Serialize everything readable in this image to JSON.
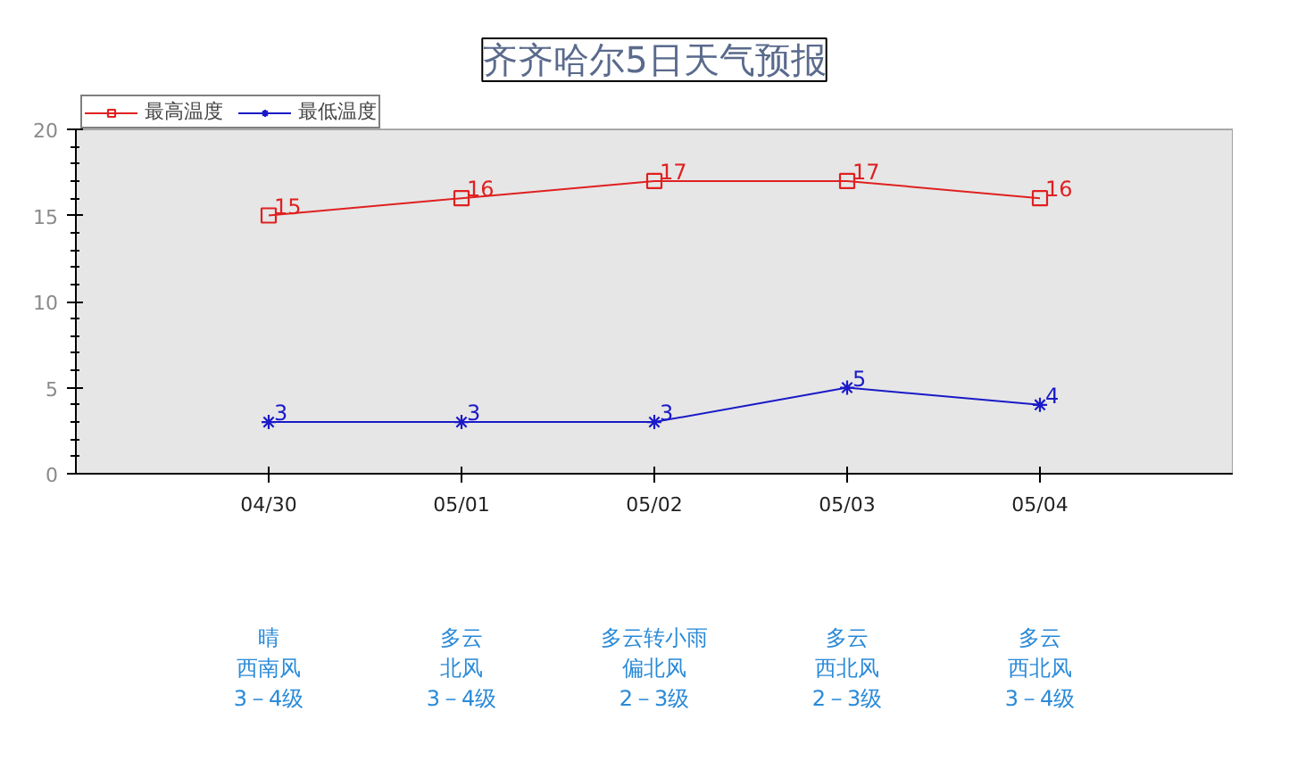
{
  "chart_data": {
    "type": "line",
    "title": "齐齐哈尔5日天气预报",
    "categories": [
      "04/30",
      "05/01",
      "05/02",
      "05/03",
      "05/04"
    ],
    "series": [
      {
        "name": "最高温度",
        "color": "#e02020",
        "values": [
          15,
          16,
          17,
          17,
          16
        ],
        "marker": "square"
      },
      {
        "name": "最低温度",
        "color": "#1a1ac8",
        "values": [
          3,
          3,
          3,
          5,
          4
        ],
        "marker": "cross"
      }
    ],
    "ylim": [
      0,
      20
    ],
    "yticks": [
      0,
      {
        "value": 1,
        "label": null
      },
      {
        "value": 2,
        "label": null
      },
      {
        "value": 3,
        "label": null
      },
      {
        "value": 4,
        "label": null
      },
      5,
      {
        "value": 6,
        "label": null
      },
      {
        "value": 7,
        "label": null
      },
      {
        "value": 8,
        "label": null
      },
      {
        "value": 9,
        "label": null
      },
      10,
      {
        "value": 11,
        "label": null
      },
      {
        "value": 12,
        "label": null
      },
      {
        "value": 13,
        "label": null
      },
      {
        "value": 14,
        "label": null
      },
      15,
      {
        "value": 16,
        "label": null
      },
      {
        "value": 17,
        "label": null
      },
      {
        "value": 18,
        "label": null
      },
      {
        "value": 19,
        "label": null
      },
      20
    ],
    "legend": "top left",
    "grid": false,
    "data_labels": true,
    "annotations": [
      "晴",
      "多云",
      "多云转小雨",
      "多云",
      "多云",
      "西南风",
      "北风",
      "偏北风",
      "西北风",
      "西北风",
      "3－4级",
      "3－4级",
      "2－3级",
      "2－3级",
      "3－4级"
    ]
  }
}
